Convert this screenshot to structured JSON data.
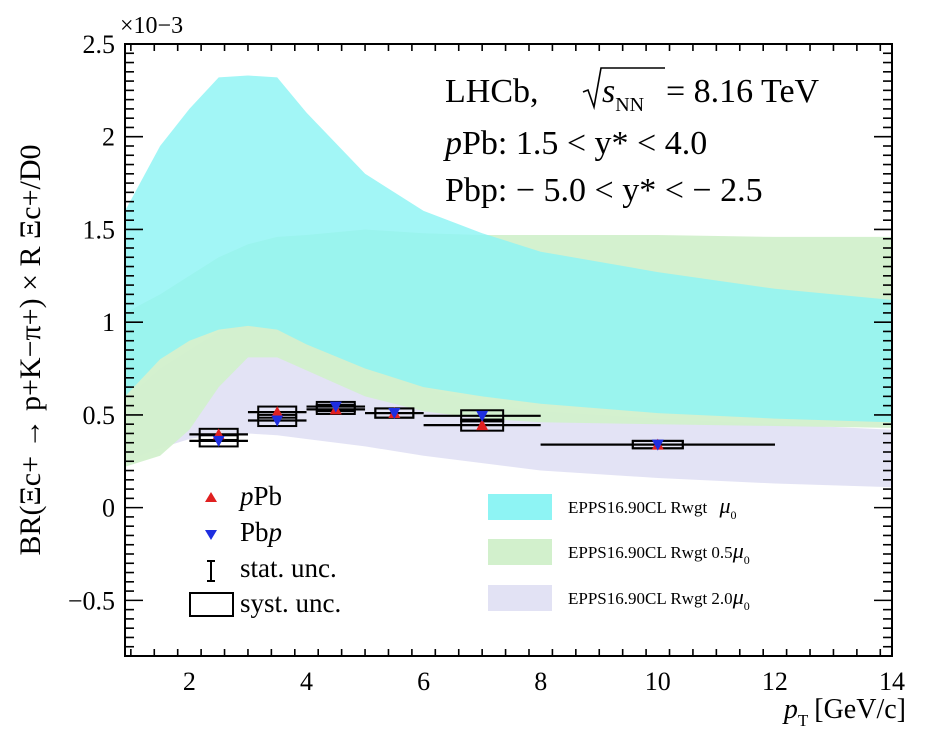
{
  "chart_data": {
    "type": "scatter",
    "title": "LHCb, √sNN = 8.16 TeV",
    "experiment": "LHCb,",
    "energy": "= 8.16 TeV",
    "sqrt_label": "s",
    "sqrt_sub": "NN",
    "selection": [
      {
        "prefix": "p",
        "rest": "Pb:  1.5 < y* < 4.0"
      },
      {
        "prefix": "Pb",
        "rest": "p: − 5.0 < y* < − 2.5"
      }
    ],
    "xlabel": "p_T [GeV/c]",
    "xlabel_main": "p",
    "xlabel_sub": "T",
    "xlabel_unit": "[GeV/c]",
    "ylabel": "BR(Ξc+ → p+K−π+) × R Ξc+/D0",
    "y_multiplier": "×10−3",
    "xlim": [
      0.9,
      14
    ],
    "ylim": [
      -0.8,
      2.5
    ],
    "x_ticks": [
      2,
      4,
      6,
      8,
      10,
      12,
      14
    ],
    "y_ticks": [
      -0.5,
      0,
      0.5,
      1,
      1.5,
      2,
      2.5
    ],
    "y_tick_labels": [
      "−0.5",
      "0",
      "0.5",
      "1",
      "1.5",
      "2",
      "2.5"
    ],
    "series": [
      {
        "name": "pPb",
        "label_prefix": "p",
        "label_rest": "Pb",
        "marker": "triangle-up",
        "color": "#e02020",
        "points": [
          {
            "x": 2.5,
            "xlow": 2.0,
            "xhigh": 3.0,
            "y": 0.395,
            "stat": 0.02,
            "syst": 0.03
          },
          {
            "x": 3.5,
            "xlow": 3.0,
            "xhigh": 4.0,
            "y": 0.515,
            "stat": 0.02,
            "syst": 0.03
          },
          {
            "x": 4.5,
            "xlow": 4.0,
            "xhigh": 5.0,
            "y": 0.53,
            "stat": 0.015,
            "syst": 0.025
          },
          {
            "x": 5.5,
            "xlow": 5.0,
            "xhigh": 6.0,
            "y": 0.51,
            "stat": 0.015,
            "syst": 0.025
          },
          {
            "x": 7.0,
            "xlow": 6.0,
            "xhigh": 8.0,
            "y": 0.445,
            "stat": 0.02,
            "syst": 0.03
          },
          {
            "x": 10.0,
            "xlow": 8.0,
            "xhigh": 12.0,
            "y": 0.34,
            "stat": 0.015,
            "syst": 0.02
          }
        ]
      },
      {
        "name": "Pbp",
        "label_prefix": "Pb",
        "label_rest": "p",
        "marker": "triangle-down",
        "color": "#1e2ee0",
        "points": [
          {
            "x": 2.5,
            "xlow": 2.0,
            "xhigh": 3.0,
            "y": 0.36,
            "stat": 0.02,
            "syst": 0.03
          },
          {
            "x": 3.5,
            "xlow": 3.0,
            "xhigh": 4.0,
            "y": 0.47,
            "stat": 0.02,
            "syst": 0.03
          },
          {
            "x": 4.5,
            "xlow": 4.0,
            "xhigh": 5.0,
            "y": 0.545,
            "stat": 0.015,
            "syst": 0.025
          },
          {
            "x": 5.5,
            "xlow": 5.0,
            "xhigh": 6.0,
            "y": 0.51,
            "stat": 0.015,
            "syst": 0.025
          },
          {
            "x": 7.0,
            "xlow": 6.0,
            "xhigh": 8.0,
            "y": 0.495,
            "stat": 0.02,
            "syst": 0.03
          },
          {
            "x": 10.0,
            "xlow": 8.0,
            "xhigh": 12.0,
            "y": 0.34,
            "stat": 0.015,
            "syst": 0.02
          }
        ]
      }
    ],
    "bands": [
      {
        "name": "EPPS16.90CL Rwgt 2.0μ0",
        "label_main": "EPPS16.90CL Rwgt  2.0",
        "label_factor": "μ",
        "label_sub": "0",
        "color": "#e2e2f4",
        "x": [
          0.9,
          1.5,
          2.0,
          2.5,
          3.0,
          3.5,
          4.0,
          5.0,
          6.0,
          7.0,
          8.0,
          10.0,
          12.0,
          14.0
        ],
        "upper": [
          0.58,
          0.75,
          0.85,
          0.95,
          1.0,
          1.0,
          0.95,
          0.8,
          0.65,
          0.56,
          0.52,
          0.48,
          0.45,
          0.42
        ],
        "lower": [
          0.25,
          0.32,
          0.37,
          0.4,
          0.4,
          0.39,
          0.37,
          0.33,
          0.28,
          0.24,
          0.2,
          0.16,
          0.13,
          0.11
        ]
      },
      {
        "name": "EPPS16.90CL Rwgt 0.5μ0",
        "label_main": "EPPS16.90CL Rwgt  0.5",
        "label_factor": "μ",
        "label_sub": "0",
        "color": "#d2f0cc",
        "x": [
          0.9,
          1.5,
          2.0,
          2.5,
          3.0,
          3.5,
          4.0,
          5.0,
          6.0,
          7.0,
          8.0,
          10.0,
          12.0,
          14.0
        ],
        "upper": [
          1.05,
          1.15,
          1.25,
          1.35,
          1.42,
          1.46,
          1.47,
          1.5,
          1.48,
          1.47,
          1.47,
          1.47,
          1.46,
          1.46
        ],
        "lower": [
          0.22,
          0.28,
          0.42,
          0.65,
          0.81,
          0.81,
          0.74,
          0.6,
          0.52,
          0.48,
          0.46,
          0.45,
          0.44,
          0.43
        ]
      },
      {
        "name": "EPPS16.90CL Rwgt μ0",
        "label_main": "EPPS16.90CL Rwgt  ",
        "label_factor": "μ",
        "label_sub": "0",
        "color": "#8ef4f4",
        "x": [
          0.9,
          1.5,
          2.0,
          2.5,
          3.0,
          3.5,
          4.0,
          5.0,
          6.0,
          7.0,
          8.0,
          10.0,
          12.0,
          14.0
        ],
        "upper": [
          1.6,
          1.95,
          2.15,
          2.32,
          2.33,
          2.32,
          2.13,
          1.8,
          1.6,
          1.48,
          1.38,
          1.27,
          1.18,
          1.12
        ],
        "lower": [
          0.6,
          0.8,
          0.9,
          0.96,
          0.98,
          0.96,
          0.88,
          0.75,
          0.65,
          0.6,
          0.56,
          0.51,
          0.48,
          0.46
        ]
      }
    ],
    "legend_markers": {
      "stat": "stat. unc.",
      "syst": "syst. unc."
    },
    "legend_position": "bottom"
  }
}
